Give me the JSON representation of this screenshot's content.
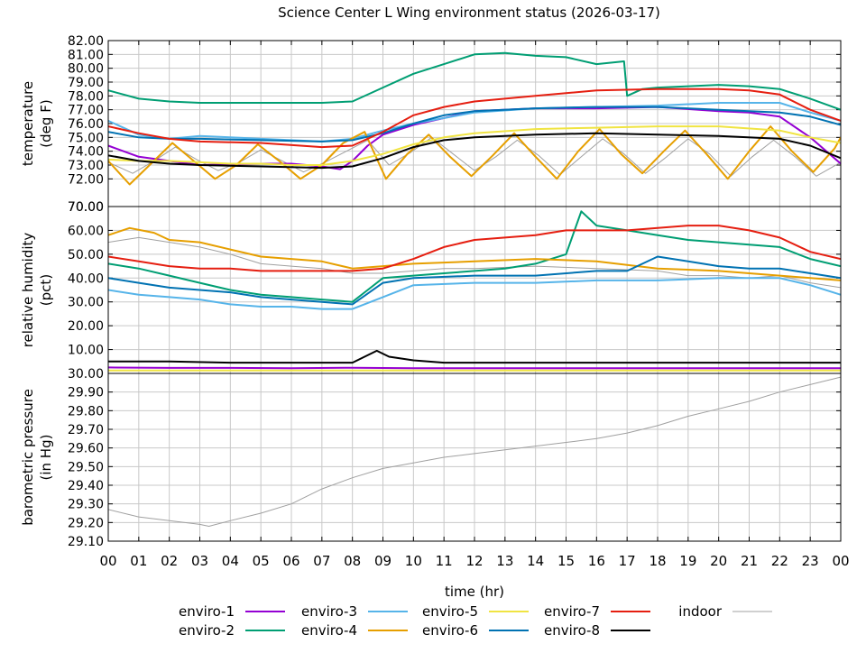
{
  "title": "Science Center L Wing environment status (2026-03-17)",
  "xlabel": "time (hr)",
  "x_ticks": [
    "00",
    "01",
    "02",
    "03",
    "04",
    "05",
    "06",
    "07",
    "08",
    "09",
    "10",
    "11",
    "12",
    "13",
    "14",
    "15",
    "16",
    "17",
    "18",
    "19",
    "20",
    "21",
    "22",
    "23",
    "00"
  ],
  "legend": [
    {
      "name": "enviro-1",
      "color": "#9400d3"
    },
    {
      "name": "enviro-2",
      "color": "#009e73"
    },
    {
      "name": "enviro-3",
      "color": "#56b4e9"
    },
    {
      "name": "enviro-4",
      "color": "#e69f00"
    },
    {
      "name": "enviro-5",
      "color": "#f0e442"
    },
    {
      "name": "enviro-6",
      "color": "#0072b2"
    },
    {
      "name": "enviro-7",
      "color": "#e51e10"
    },
    {
      "name": "enviro-8",
      "color": "#000000"
    },
    {
      "name": "indoor",
      "color": "#a0a0a0"
    }
  ],
  "chart_data": [
    {
      "type": "line",
      "ylabel": "temperature",
      "ylabel2": "(deg F)",
      "ylim": [
        70,
        82
      ],
      "y_ticks": [
        "70.00",
        "72.00",
        "73.00",
        "74.00",
        "75.00",
        "76.00",
        "77.00",
        "78.00",
        "79.00",
        "80.00",
        "81.00",
        "82.00"
      ],
      "series": [
        {
          "name": "enviro-1",
          "color": "#9400d3",
          "x": [
            0,
            1,
            2,
            3,
            5,
            6,
            7,
            7.6,
            8,
            8.5,
            9,
            10,
            11,
            12,
            14,
            16,
            18,
            20,
            21,
            22,
            23,
            24
          ],
          "y": [
            74.4,
            73.6,
            73.3,
            73.0,
            73.1,
            73.1,
            72.9,
            72.7,
            73.3,
            74.4,
            75.2,
            75.9,
            76.4,
            76.9,
            77.1,
            77.1,
            77.2,
            76.9,
            76.8,
            76.5,
            75.0,
            73.1
          ]
        },
        {
          "name": "enviro-2",
          "color": "#009e73",
          "x": [
            0,
            1,
            2,
            3,
            5,
            7,
            8,
            9,
            10,
            11,
            12,
            13,
            14,
            15,
            16,
            16.9,
            17,
            17.5,
            18,
            19,
            20,
            21,
            22,
            23,
            24
          ],
          "y": [
            78.4,
            77.8,
            77.6,
            77.5,
            77.5,
            77.5,
            77.6,
            78.6,
            79.6,
            80.3,
            81.0,
            81.1,
            80.9,
            80.8,
            80.3,
            80.5,
            78.0,
            78.5,
            78.6,
            78.7,
            78.8,
            78.7,
            78.5,
            77.8,
            77.0
          ]
        },
        {
          "name": "enviro-3",
          "color": "#56b4e9",
          "x": [
            0,
            1,
            2,
            3,
            4,
            5,
            6,
            7,
            8,
            9,
            10,
            11,
            12,
            14,
            16,
            18,
            20,
            22,
            23,
            24
          ],
          "y": [
            76.2,
            75.2,
            74.9,
            75.1,
            75.0,
            74.9,
            74.8,
            74.7,
            74.9,
            75.5,
            76.0,
            76.4,
            76.8,
            77.1,
            77.2,
            77.3,
            77.5,
            77.5,
            76.8,
            76.2
          ]
        },
        {
          "name": "enviro-4",
          "color": "#e69f00",
          "x": [
            0,
            0.7,
            1.4,
            2.1,
            2.8,
            3.5,
            4.2,
            4.9,
            5.6,
            6.3,
            7,
            7.7,
            8.4,
            9.1,
            9.8,
            10.5,
            11.2,
            11.9,
            12.6,
            13.3,
            14,
            14.7,
            15.4,
            16.1,
            16.8,
            17.5,
            18.2,
            18.9,
            19.6,
            20.3,
            21,
            21.7,
            22.4,
            23.1,
            23.8,
            24
          ],
          "y": [
            73.3,
            71.6,
            73.1,
            74.6,
            73.3,
            72.0,
            73.0,
            74.5,
            73.3,
            72.0,
            73.0,
            74.6,
            75.4,
            72.0,
            73.8,
            75.2,
            73.6,
            72.2,
            73.7,
            75.3,
            73.6,
            72.0,
            74.0,
            75.6,
            73.8,
            72.4,
            74.0,
            75.5,
            73.8,
            72.0,
            74.0,
            75.8,
            74.0,
            72.5,
            74.2,
            75.0
          ]
        },
        {
          "name": "enviro-5",
          "color": "#f0e442",
          "x": [
            0,
            1,
            2,
            3,
            4,
            5,
            6,
            7,
            8,
            9,
            10,
            11,
            12,
            14,
            16,
            18,
            20,
            22,
            23,
            24
          ],
          "y": [
            73.4,
            73.3,
            73.3,
            73.2,
            73.1,
            73.1,
            73.0,
            73.0,
            73.3,
            73.8,
            74.5,
            75.0,
            75.3,
            75.6,
            75.7,
            75.8,
            75.8,
            75.5,
            75.0,
            74.6
          ]
        },
        {
          "name": "enviro-6",
          "color": "#0072b2",
          "x": [
            0,
            1,
            2,
            3,
            5,
            7,
            8,
            9,
            10,
            11,
            12,
            14,
            16,
            18,
            20,
            22,
            23,
            24
          ],
          "y": [
            75.4,
            75.0,
            74.9,
            74.9,
            74.8,
            74.7,
            74.8,
            75.3,
            76.0,
            76.6,
            76.9,
            77.1,
            77.2,
            77.2,
            77.0,
            76.8,
            76.5,
            75.9
          ]
        },
        {
          "name": "enviro-7",
          "color": "#e51e10",
          "x": [
            0,
            1,
            2,
            3,
            5,
            7,
            8,
            9,
            10,
            11,
            12,
            13,
            14,
            15,
            16,
            18,
            20,
            21,
            22,
            23,
            24
          ],
          "y": [
            75.8,
            75.3,
            74.9,
            74.7,
            74.6,
            74.3,
            74.4,
            75.4,
            76.6,
            77.2,
            77.6,
            77.8,
            78.0,
            78.2,
            78.4,
            78.5,
            78.5,
            78.4,
            78.1,
            77.0,
            76.2
          ]
        },
        {
          "name": "enviro-8",
          "color": "#000000",
          "x": [
            0,
            1,
            2,
            3,
            5,
            7,
            8,
            9,
            10,
            11,
            12,
            14,
            16,
            18,
            20,
            22,
            23,
            24
          ],
          "y": [
            73.7,
            73.3,
            73.1,
            73.0,
            72.9,
            72.8,
            72.9,
            73.5,
            74.3,
            74.8,
            75.0,
            75.2,
            75.3,
            75.2,
            75.1,
            74.9,
            74.4,
            73.5
          ]
        },
        {
          "name": "indoor",
          "color": "#a0a0a0",
          "x": [
            0,
            0.8,
            1.5,
            2.2,
            2.9,
            3.6,
            4.3,
            5,
            5.7,
            6.4,
            7.1,
            7.8,
            8.5,
            9.2,
            9.9,
            10.6,
            11.3,
            12,
            12.7,
            13.4,
            14.1,
            14.8,
            15.5,
            16.2,
            16.9,
            17.6,
            18.3,
            19,
            19.7,
            20.4,
            21.1,
            21.8,
            22.5,
            23.2,
            24
          ],
          "y": [
            73.2,
            72.4,
            73.3,
            74.3,
            73.4,
            72.6,
            73.2,
            74.1,
            73.3,
            72.5,
            73.2,
            74.0,
            74.8,
            73.0,
            73.9,
            75.0,
            73.8,
            72.6,
            73.6,
            74.8,
            73.7,
            72.3,
            73.6,
            74.9,
            73.8,
            72.4,
            73.6,
            74.9,
            73.8,
            72.2,
            73.6,
            74.8,
            73.6,
            72.2,
            73.2
          ]
        }
      ]
    },
    {
      "type": "line",
      "ylabel": "relative humidity",
      "ylabel2": "(pct)",
      "ylim": [
        0,
        70
      ],
      "y_ticks": [
        "10.00",
        "20.00",
        "30.00",
        "40.00",
        "50.00",
        "60.00",
        "70.00"
      ],
      "series": [
        {
          "name": "enviro-1",
          "color": "#9400d3",
          "x": [
            0,
            2,
            4,
            6,
            8,
            10,
            12,
            14,
            16,
            18,
            20,
            22,
            24
          ],
          "y": [
            2.5,
            2.3,
            2.3,
            2.2,
            2.4,
            2.2,
            2.2,
            2.2,
            2.2,
            2.2,
            2.2,
            2.2,
            2.2
          ]
        },
        {
          "name": "enviro-2",
          "color": "#009e73",
          "x": [
            0,
            1,
            2,
            3,
            4,
            5,
            6,
            7,
            8,
            8.5,
            9,
            10,
            11,
            12,
            13,
            14,
            15,
            15.5,
            16,
            17,
            18,
            19,
            20,
            21,
            22,
            23,
            24
          ],
          "y": [
            46,
            44,
            41,
            38,
            35,
            33,
            32,
            31,
            30,
            35,
            40,
            41,
            42,
            43,
            44,
            46,
            50,
            68,
            62,
            60,
            58,
            56,
            55,
            54,
            53,
            48,
            45
          ]
        },
        {
          "name": "enviro-3",
          "color": "#56b4e9",
          "x": [
            0,
            1,
            2,
            3,
            4,
            5,
            6,
            7,
            8,
            9,
            10,
            12,
            14,
            16,
            18,
            20,
            22,
            23,
            24
          ],
          "y": [
            35,
            33,
            32,
            31,
            29,
            28,
            28,
            27,
            27,
            32,
            37,
            38,
            38,
            39,
            39,
            40,
            40,
            37,
            33
          ]
        },
        {
          "name": "enviro-4",
          "color": "#e69f00",
          "x": [
            0,
            0.7,
            1.5,
            2,
            3,
            4,
            5,
            6,
            7,
            8,
            9,
            10,
            12,
            14,
            16,
            18,
            20,
            22,
            24
          ],
          "y": [
            58,
            61,
            59,
            56,
            55,
            52,
            49,
            48,
            47,
            44,
            45,
            46,
            47,
            48,
            47,
            44,
            43,
            41,
            39
          ]
        },
        {
          "name": "enviro-5",
          "color": "#f0e442",
          "x": [
            0,
            6,
            12,
            18,
            24
          ],
          "y": [
            1.2,
            1.2,
            1.2,
            1.2,
            1.2
          ]
        },
        {
          "name": "enviro-6",
          "color": "#0072b2",
          "x": [
            0,
            1,
            2,
            3,
            4,
            5,
            6,
            7,
            8,
            9,
            10,
            12,
            14,
            16,
            17,
            18,
            19,
            20,
            21,
            22,
            23,
            24
          ],
          "y": [
            40,
            38,
            36,
            35,
            34,
            32,
            31,
            30,
            29,
            38,
            40,
            41,
            41,
            43,
            43,
            49,
            47,
            45,
            44,
            44,
            42,
            40
          ]
        },
        {
          "name": "enviro-7",
          "color": "#e51e10",
          "x": [
            0,
            1,
            2,
            3,
            4,
            5,
            6,
            7,
            8,
            9,
            10,
            11,
            12,
            13,
            14,
            15,
            16,
            17,
            18,
            19,
            20,
            21,
            22,
            23,
            24
          ],
          "y": [
            49,
            47,
            45,
            44,
            44,
            43,
            43,
            43,
            43,
            44,
            48,
            53,
            56,
            57,
            58,
            60,
            60,
            60,
            61,
            62,
            62,
            60,
            57,
            51,
            48
          ]
        },
        {
          "name": "enviro-8",
          "color": "#000000",
          "x": [
            0,
            2,
            4,
            6,
            8,
            8.8,
            9.2,
            10,
            11,
            12,
            16,
            20,
            24
          ],
          "y": [
            5,
            5,
            4.5,
            4.5,
            4.5,
            9.5,
            7,
            5.5,
            4.5,
            4.5,
            4.5,
            4.5,
            4.5
          ]
        },
        {
          "name": "indoor",
          "color": "#a0a0a0",
          "x": [
            0,
            1,
            2,
            3,
            4,
            5,
            6,
            7,
            8,
            9,
            10,
            11,
            12,
            14,
            16,
            18,
            19,
            20,
            21,
            22,
            23,
            24
          ],
          "y": [
            55,
            57,
            55,
            53,
            50,
            46,
            45,
            44,
            42,
            42,
            43,
            44,
            44,
            45,
            44,
            43,
            41,
            41,
            40,
            41,
            38,
            36
          ]
        }
      ]
    },
    {
      "type": "line",
      "ylabel": "barometric pressure",
      "ylabel2": "(in Hg)",
      "ylim": [
        29.1,
        30.0
      ],
      "y_ticks": [
        "29.10",
        "29.20",
        "29.30",
        "29.40",
        "29.50",
        "29.60",
        "29.70",
        "29.80",
        "29.90",
        "30.00"
      ],
      "series": [
        {
          "name": "indoor",
          "color": "#a0a0a0",
          "x": [
            0,
            1,
            2,
            3,
            3.3,
            4,
            5,
            6,
            7,
            8,
            9,
            10,
            11,
            12,
            13,
            14,
            15,
            16,
            17,
            18,
            19,
            20,
            21,
            22,
            23,
            24
          ],
          "y": [
            29.27,
            29.23,
            29.21,
            29.19,
            29.18,
            29.21,
            29.25,
            29.3,
            29.38,
            29.44,
            29.49,
            29.52,
            29.55,
            29.57,
            29.59,
            29.61,
            29.63,
            29.65,
            29.68,
            29.72,
            29.77,
            29.81,
            29.85,
            29.9,
            29.94,
            29.98
          ]
        }
      ]
    }
  ]
}
